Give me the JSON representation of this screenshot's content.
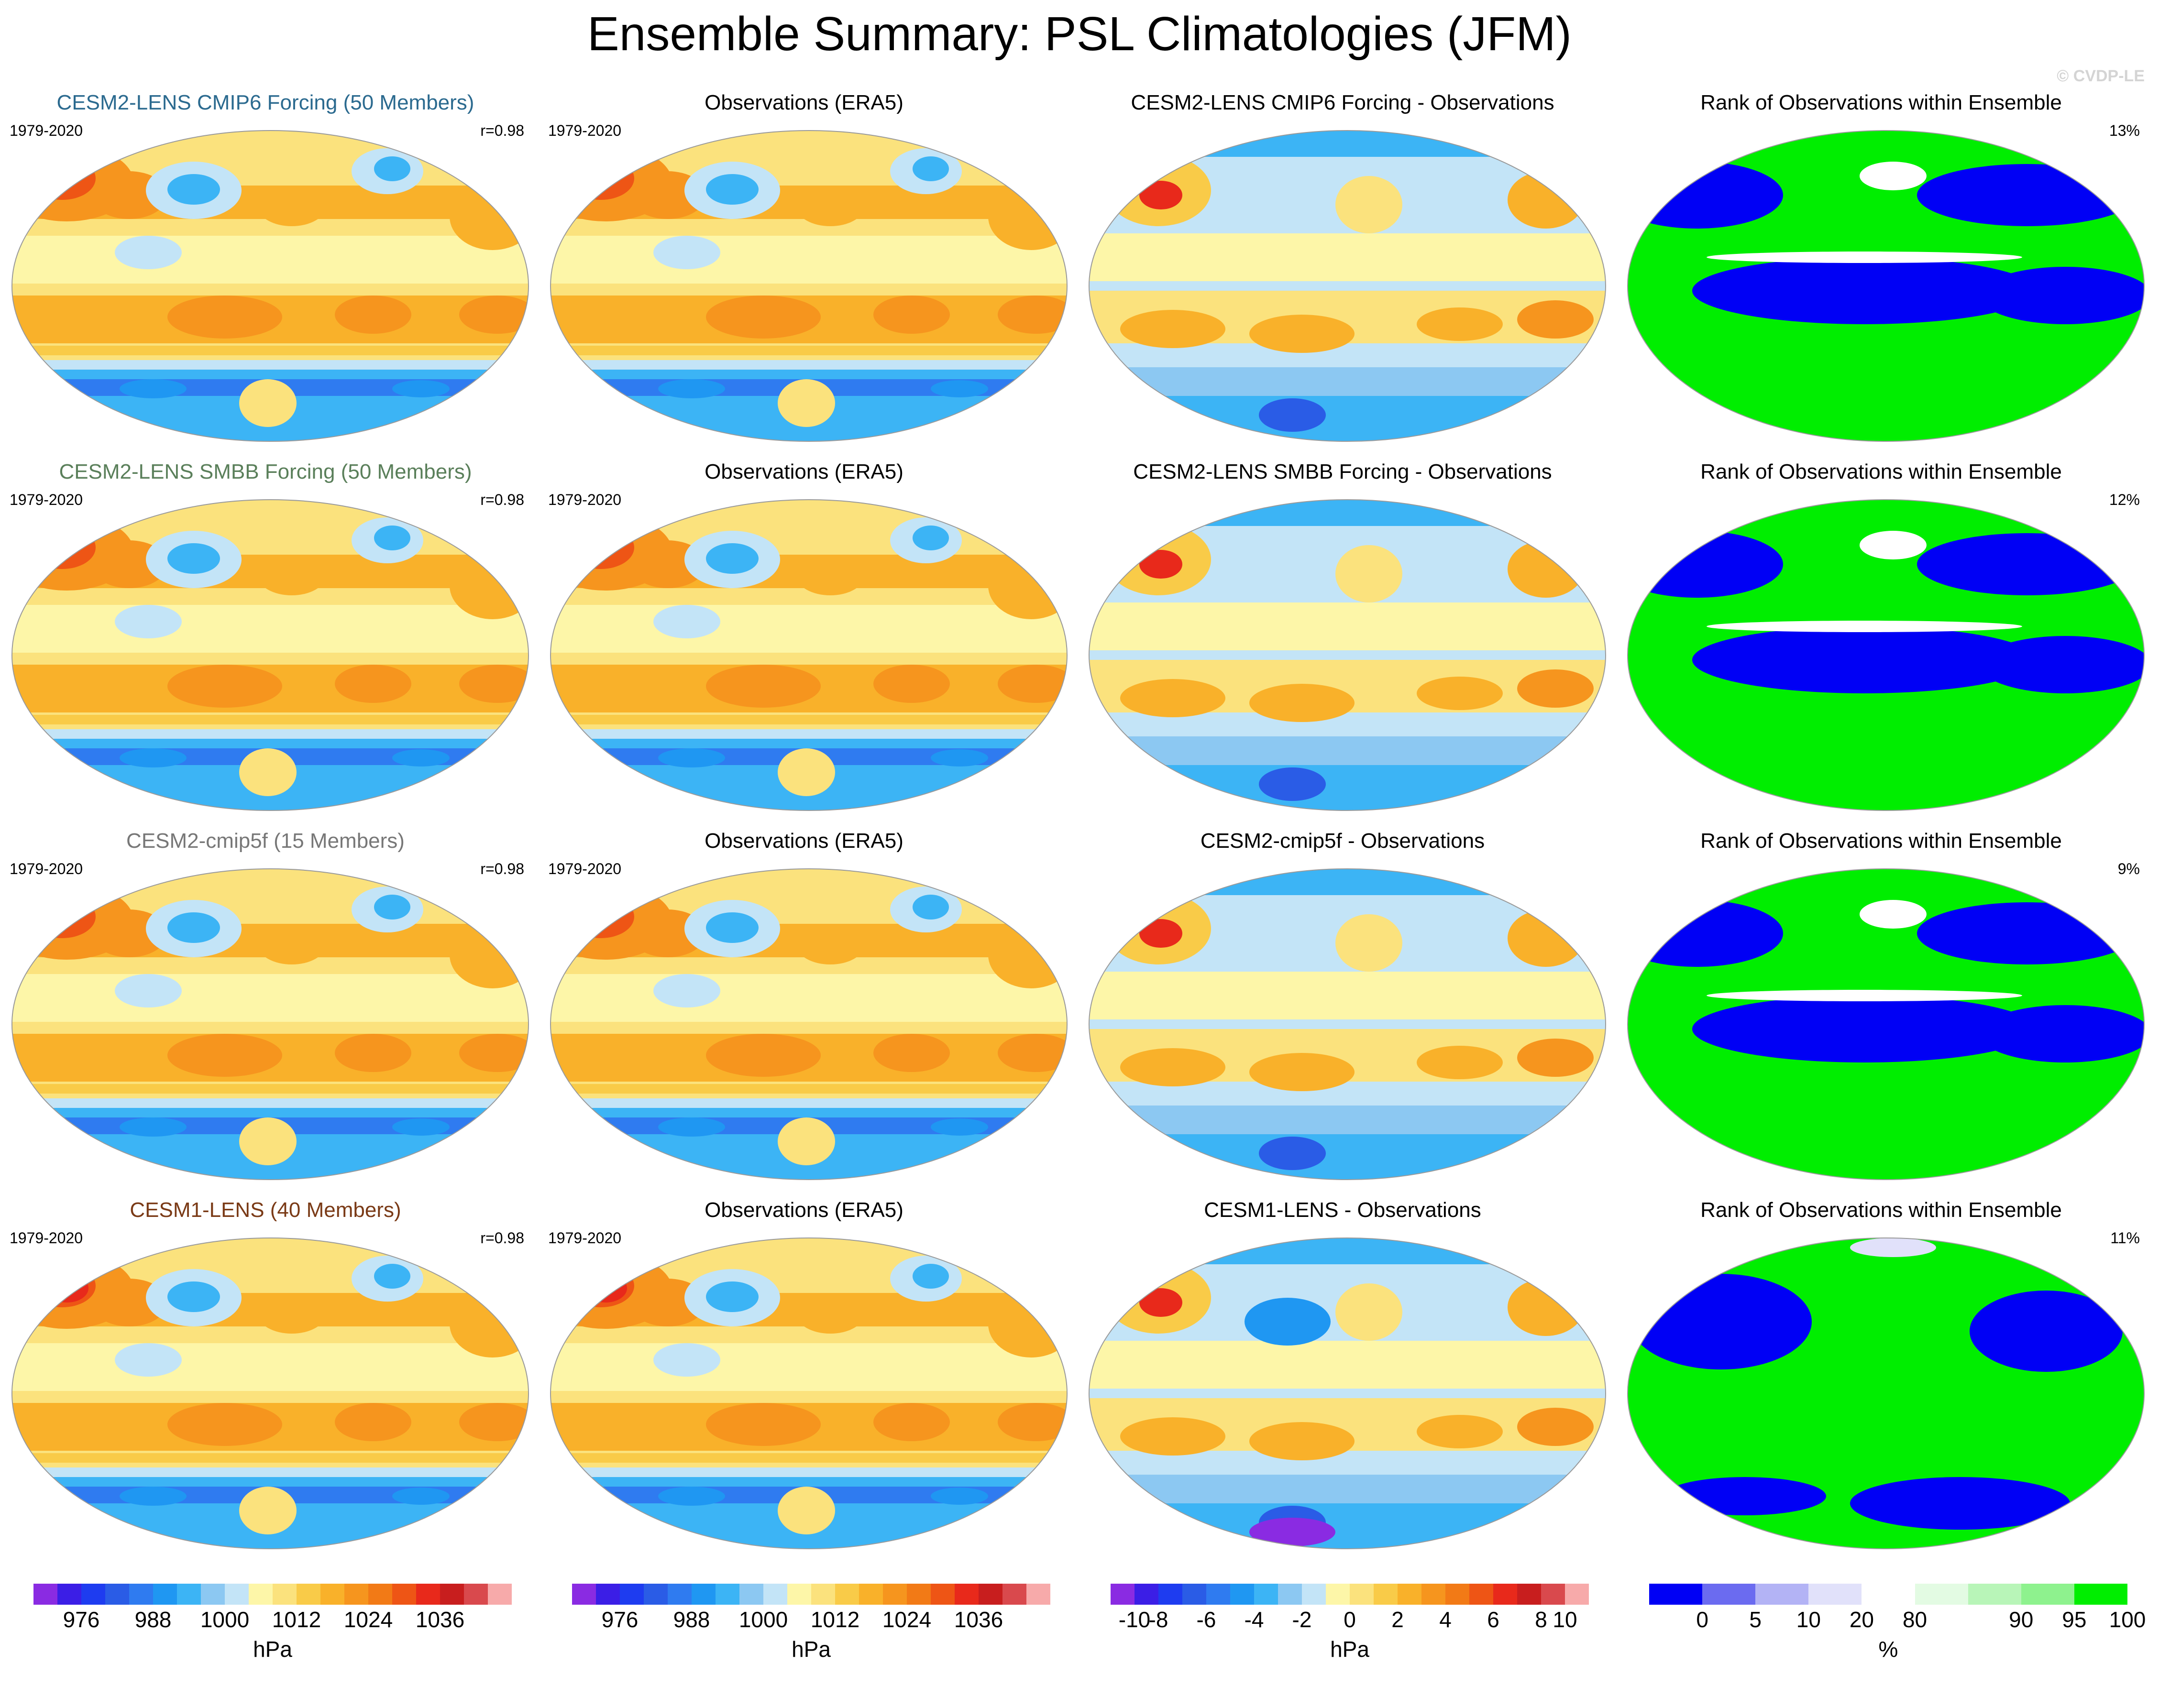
{
  "figure": {
    "title": "Ensemble Summary: PSL Climatologies (JFM)",
    "watermark": "© CVDP-LE"
  },
  "colors": {
    "psl_scale": [
      "#8a2be2",
      "#3b1ee6",
      "#1e3cf0",
      "#2a5ce6",
      "#2f7bf0",
      "#1f97f2",
      "#3cb4f5",
      "#8cc8f2",
      "#c3e4f7",
      "#fdf6a8",
      "#fbe27d",
      "#f9cb48",
      "#f9b12a",
      "#f6951e",
      "#f27a16",
      "#ee5515",
      "#e8291b",
      "#c81e1e",
      "#d9494d",
      "#f7aaaa"
    ],
    "diff_scale": [
      "#8a2be2",
      "#3b1ee6",
      "#1e3cf0",
      "#2a5ce6",
      "#2f7bf0",
      "#1f97f2",
      "#3cb4f5",
      "#8cc8f2",
      "#c3e4f7",
      "#fdf6a8",
      "#fbe27d",
      "#f9cb48",
      "#f9b12a",
      "#f6951e",
      "#f27a16",
      "#ee5515",
      "#e8291b",
      "#c81e1e",
      "#d9494d",
      "#f7aaaa"
    ],
    "rank_scale": [
      "#0000f5",
      "#6b6bf0",
      "#b3b3f5",
      "#e1e1fa",
      "#ffffff",
      "#e3fbe3",
      "#b8f5b8",
      "#8ef28e",
      "#00ee00"
    ],
    "model_title_colors": [
      "#2b6a8f",
      "#5a7f5a",
      "#777777",
      "#7a3a16"
    ]
  },
  "chart_data": [
    {
      "type": "heatmap",
      "title": "CESM2-LENS CMIP6 Forcing (50 Members)",
      "years": "1979-2020",
      "stat": "r=0.98",
      "kind": "psl",
      "model_index": 0
    },
    {
      "type": "heatmap",
      "title": "Observations (ERA5)",
      "years": "1979-2020",
      "stat": "",
      "kind": "psl",
      "model_index": -1
    },
    {
      "type": "heatmap",
      "title": "CESM2-LENS CMIP6 Forcing - Observations",
      "years": "",
      "stat": "",
      "kind": "diff",
      "model_index": -1
    },
    {
      "type": "heatmap",
      "title": "Rank of Observations within Ensemble",
      "years": "",
      "stat": "13%",
      "kind": "rank",
      "model_index": -1
    },
    {
      "type": "heatmap",
      "title": "CESM2-LENS SMBB Forcing (50 Members)",
      "years": "1979-2020",
      "stat": "r=0.98",
      "kind": "psl",
      "model_index": 1
    },
    {
      "type": "heatmap",
      "title": "Observations (ERA5)",
      "years": "1979-2020",
      "stat": "",
      "kind": "psl",
      "model_index": -1
    },
    {
      "type": "heatmap",
      "title": "CESM2-LENS SMBB Forcing - Observations",
      "years": "",
      "stat": "",
      "kind": "diff",
      "model_index": -1
    },
    {
      "type": "heatmap",
      "title": "Rank of Observations within Ensemble",
      "years": "",
      "stat": "12%",
      "kind": "rank",
      "model_index": -1
    },
    {
      "type": "heatmap",
      "title": "CESM2-cmip5f (15 Members)",
      "years": "1979-2020",
      "stat": "r=0.98",
      "kind": "psl",
      "model_index": 2
    },
    {
      "type": "heatmap",
      "title": "Observations (ERA5)",
      "years": "1979-2020",
      "stat": "",
      "kind": "psl",
      "model_index": -1
    },
    {
      "type": "heatmap",
      "title": "CESM2-cmip5f - Observations",
      "years": "",
      "stat": "",
      "kind": "diff",
      "model_index": -1
    },
    {
      "type": "heatmap",
      "title": "Rank of Observations within Ensemble",
      "years": "",
      "stat": "9%",
      "kind": "rank",
      "model_index": -1
    },
    {
      "type": "heatmap",
      "title": "CESM1-LENS (40 Members)",
      "years": "1979-2020",
      "stat": "r=0.98",
      "kind": "psl",
      "model_index": 3
    },
    {
      "type": "heatmap",
      "title": "Observations (ERA5)",
      "years": "1979-2020",
      "stat": "",
      "kind": "psl",
      "model_index": -1
    },
    {
      "type": "heatmap",
      "title": "CESM1-LENS - Observations",
      "years": "",
      "stat": "",
      "kind": "diff",
      "model_index": -1
    },
    {
      "type": "heatmap",
      "title": "Rank of Observations within Ensemble",
      "years": "",
      "stat": "11%",
      "kind": "rank",
      "model_index": -1
    }
  ],
  "colorbars": [
    {
      "scale": "psl_scale",
      "unit": "hPa",
      "ticks": [
        {
          "label": "976",
          "index": 2
        },
        {
          "label": "988",
          "index": 5
        },
        {
          "label": "1000",
          "index": 8
        },
        {
          "label": "1012",
          "index": 11
        },
        {
          "label": "1024",
          "index": 14
        },
        {
          "label": "1036",
          "index": 17
        }
      ]
    },
    {
      "scale": "psl_scale",
      "unit": "hPa",
      "ticks": [
        {
          "label": "976",
          "index": 2
        },
        {
          "label": "988",
          "index": 5
        },
        {
          "label": "1000",
          "index": 8
        },
        {
          "label": "1012",
          "index": 11
        },
        {
          "label": "1024",
          "index": 14
        },
        {
          "label": "1036",
          "index": 17
        }
      ]
    },
    {
      "scale": "diff_scale",
      "unit": "hPa",
      "ticks": [
        {
          "label": "-10",
          "index": 1
        },
        {
          "label": "-8",
          "index": 2
        },
        {
          "label": "-6",
          "index": 4
        },
        {
          "label": "-4",
          "index": 6
        },
        {
          "label": "-2",
          "index": 8
        },
        {
          "label": "0",
          "index": 10
        },
        {
          "label": "2",
          "index": 12
        },
        {
          "label": "4",
          "index": 14
        },
        {
          "label": "6",
          "index": 16
        },
        {
          "label": "8",
          "index": 18
        },
        {
          "label": "10",
          "index": 19
        }
      ]
    },
    {
      "scale": "rank_scale",
      "unit": "%",
      "ticks": [
        {
          "label": "0",
          "index": 1
        },
        {
          "label": "5",
          "index": 2
        },
        {
          "label": "10",
          "index": 3
        },
        {
          "label": "20",
          "index": 4
        },
        {
          "label": "80",
          "index": 5
        },
        {
          "label": "90",
          "index": 7
        },
        {
          "label": "95",
          "index": 8
        },
        {
          "label": "100",
          "index": 9
        }
      ]
    }
  ]
}
